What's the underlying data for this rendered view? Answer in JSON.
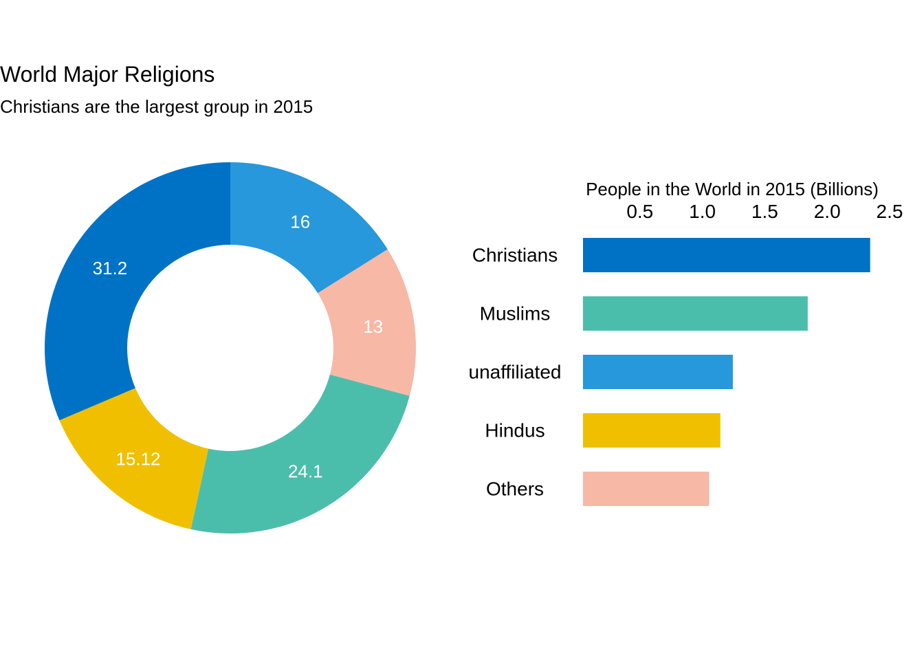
{
  "header": {
    "title": "World Major Religions",
    "subtitle": "Christians are the largest group in 2015"
  },
  "chart_data": [
    {
      "type": "pie",
      "variant": "donut",
      "unit": "percent",
      "categories": [
        "Christians",
        "Muslims",
        "unaffiliated",
        "Hindus",
        "Others"
      ],
      "values": [
        31.2,
        24.1,
        16,
        15.12,
        13
      ],
      "data_labels": [
        "31.2",
        "24.1",
        "16",
        "15.12",
        "13"
      ],
      "slice_order_clockwise_from_top": [
        "unaffiliated",
        "Others",
        "Muslims",
        "Hindus",
        "Christians"
      ],
      "colors": {
        "Christians": "#0072C6",
        "Muslims": "#4BBEAB",
        "unaffiliated": "#2698DB",
        "Hindus": "#F0C000",
        "Others": "#F7B8A6"
      }
    },
    {
      "type": "bar",
      "orientation": "horizontal",
      "xlabel": "People in the World in 2015 (Billions)",
      "x_axis_position": "top",
      "categories": [
        "Christians",
        "Muslims",
        "unaffiliated",
        "Hindus",
        "Others"
      ],
      "values": [
        2.3,
        1.8,
        1.2,
        1.1,
        1.01
      ],
      "xlim": [
        0,
        2.5
      ],
      "ticks": [
        0.5,
        1.0,
        1.5,
        2.0,
        2.5
      ],
      "tick_labels": [
        "0.5",
        "1.0",
        "1.5",
        "2.0",
        "2.5"
      ],
      "grid": false,
      "colors": [
        "#0072C6",
        "#4BBEAB",
        "#2698DB",
        "#F0C000",
        "#F7B8A6"
      ]
    }
  ]
}
